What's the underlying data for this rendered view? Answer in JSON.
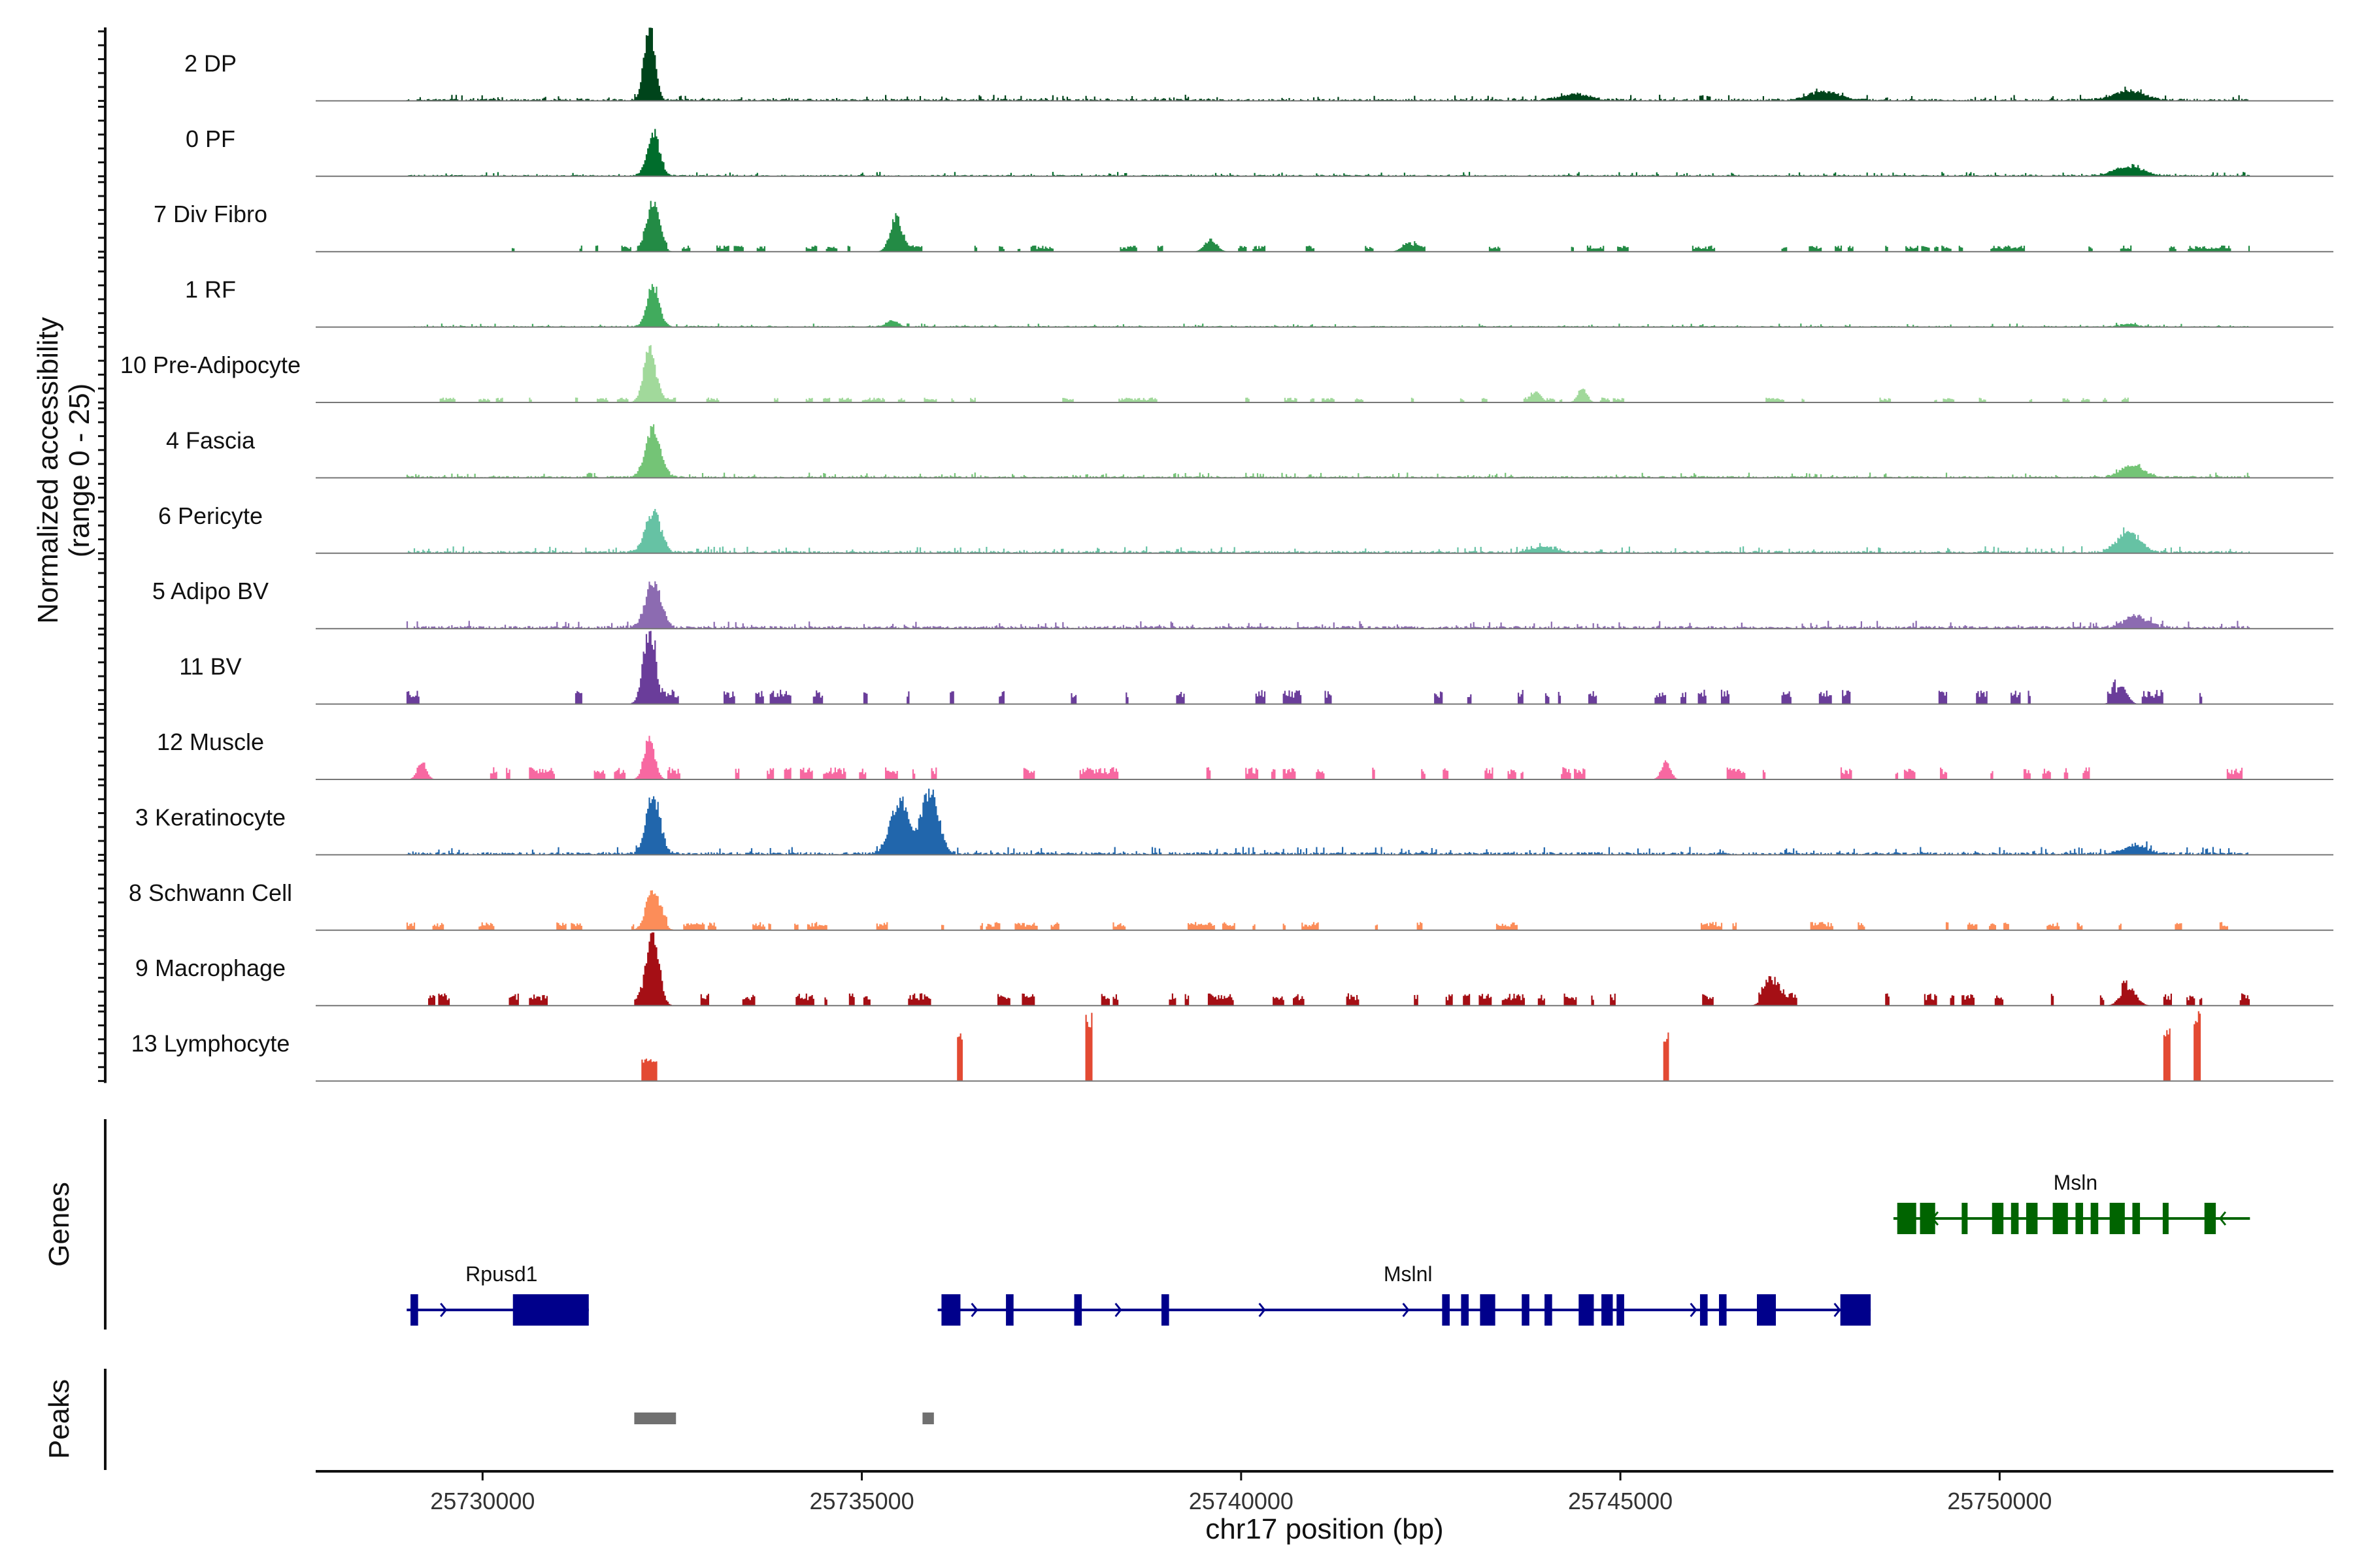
{
  "chart_data": {
    "type": "area",
    "title": "",
    "ylabel_line1": "Normalized accessibility",
    "ylabel_line2": "(range 0 - 25)",
    "xlabel": "chr17 position (bp)",
    "xlim": [
      25727800,
      25754400
    ],
    "ylim": [
      0,
      25
    ],
    "xticks": [
      25730000,
      25735000,
      25740000,
      25745000,
      25750000
    ],
    "xtick_labels": [
      "25730000",
      "25735000",
      "25740000",
      "25745000",
      "25750000"
    ],
    "genes_label": "Genes",
    "peaks_label": "Peaks",
    "tracks": [
      {
        "name": "2 DP",
        "color": "#00441b",
        "style": "continuous",
        "noise": 0.7,
        "peaks": [
          [
            25732200,
            25,
            70
          ],
          [
            25747700,
            3,
            200
          ],
          [
            25751700,
            3,
            200
          ],
          [
            25744400,
            2,
            200
          ]
        ]
      },
      {
        "name": "0 PF",
        "color": "#006d2c",
        "style": "continuous",
        "noise": 0.5,
        "peaks": [
          [
            25732250,
            15,
            80
          ],
          [
            25751700,
            3,
            200
          ]
        ]
      },
      {
        "name": "7 Div Fibro",
        "color": "#238b45",
        "style": "patchy",
        "noise": 1.5,
        "peaks": [
          [
            25732250,
            16,
            80
          ],
          [
            25735450,
            10,
            80
          ],
          [
            25739600,
            4,
            80
          ],
          [
            25742200,
            3,
            80
          ]
        ]
      },
      {
        "name": "1 RF",
        "color": "#41ab5d",
        "style": "continuous",
        "noise": 0.4,
        "peaks": [
          [
            25732250,
            14,
            80
          ],
          [
            25735400,
            2,
            80
          ],
          [
            25751700,
            1,
            100
          ]
        ]
      },
      {
        "name": "10 Pre-Adipocyte",
        "color": "#a1d99b",
        "style": "patchy",
        "noise": 1.2,
        "peaks": [
          [
            25732200,
            17,
            80
          ],
          [
            25743900,
            4,
            60
          ],
          [
            25744500,
            5,
            60
          ]
        ]
      },
      {
        "name": "4 Fascia",
        "color": "#74c476",
        "style": "continuous",
        "noise": 0.6,
        "peaks": [
          [
            25732250,
            16,
            100
          ],
          [
            25751750,
            4,
            150
          ]
        ]
      },
      {
        "name": "6 Pericyte",
        "color": "#66c2a4",
        "style": "continuous",
        "noise": 0.8,
        "peaks": [
          [
            25732250,
            14,
            100
          ],
          [
            25751700,
            7,
            150
          ],
          [
            25744000,
            2,
            150
          ]
        ]
      },
      {
        "name": "5 Adipo BV",
        "color": "#8c6bb1",
        "style": "continuous",
        "noise": 0.9,
        "peaks": [
          [
            25732250,
            16,
            100
          ],
          [
            25751800,
            4,
            150
          ]
        ]
      },
      {
        "name": "11 BV",
        "color": "#6a3d9a",
        "style": "patchy",
        "noise": 3.5,
        "peaks": [
          [
            25732200,
            25,
            80
          ],
          [
            25751600,
            6,
            80
          ]
        ]
      },
      {
        "name": "12 Muscle",
        "color": "#f768a1",
        "style": "patchy",
        "noise": 3.0,
        "peaks": [
          [
            25732200,
            14,
            70
          ],
          [
            25729200,
            6,
            60
          ],
          [
            25745600,
            6,
            60
          ]
        ]
      },
      {
        "name": "3 Keratinocyte",
        "color": "#2166ac",
        "style": "continuous",
        "noise": 0.9,
        "peaks": [
          [
            25732250,
            20,
            90
          ],
          [
            25735500,
            18,
            120
          ],
          [
            25735900,
            22,
            110
          ],
          [
            25751800,
            3,
            150
          ]
        ]
      },
      {
        "name": "8 Schwann Cell",
        "color": "#fc8d59",
        "style": "patchy",
        "noise": 2.0,
        "peaks": [
          [
            25732250,
            14,
            90
          ]
        ]
      },
      {
        "name": "9 Macrophage",
        "color": "#a50f15",
        "style": "patchy",
        "noise": 3.0,
        "peaks": [
          [
            25732250,
            24,
            80
          ],
          [
            25751700,
            6,
            100
          ],
          [
            25747000,
            6,
            100
          ]
        ]
      },
      {
        "name": "13 Lymphocyte",
        "color": "#e34a33",
        "style": "sparse",
        "noise": 0,
        "peaks": [
          [
            25738000,
            24,
            50
          ],
          [
            25752600,
            24,
            50
          ],
          [
            25752200,
            18,
            50
          ],
          [
            25736300,
            18,
            40
          ],
          [
            25745600,
            17,
            40
          ],
          [
            25732200,
            8,
            100
          ]
        ]
      }
    ],
    "genes": [
      {
        "name": "Rpusd1",
        "strand": "+",
        "color": "#00008b",
        "start": 25729000,
        "end": 25731400,
        "exons": [
          [
            25729050,
            25729150
          ],
          [
            25730400,
            25731400
          ]
        ]
      },
      {
        "name": "Mslnl",
        "strand": "+",
        "color": "#00008b",
        "start": 25736000,
        "end": 25748300,
        "exons": [
          [
            25736050,
            25736300
          ],
          [
            25736900,
            25737000
          ],
          [
            25737800,
            25737900
          ],
          [
            25738950,
            25739050
          ],
          [
            25742650,
            25742750
          ],
          [
            25742900,
            25743000
          ],
          [
            25743150,
            25743350
          ],
          [
            25743700,
            25743800
          ],
          [
            25744000,
            25744100
          ],
          [
            25744450,
            25744650
          ],
          [
            25744750,
            25744900
          ],
          [
            25744950,
            25745050
          ],
          [
            25746050,
            25746150
          ],
          [
            25746300,
            25746400
          ],
          [
            25746800,
            25747050
          ],
          [
            25747900,
            25748300
          ]
        ]
      },
      {
        "name": "Msln",
        "strand": "-",
        "color": "#006400",
        "start": 25748600,
        "end": 25753300,
        "exons": [
          [
            25748650,
            25748900
          ],
          [
            25748950,
            25749150
          ],
          [
            25749500,
            25749550
          ],
          [
            25749900,
            25750050
          ],
          [
            25750150,
            25750250
          ],
          [
            25750350,
            25750500
          ],
          [
            25750700,
            25750900
          ],
          [
            25751000,
            25751100
          ],
          [
            25751200,
            25751300
          ],
          [
            25751450,
            25751650
          ],
          [
            25751750,
            25751850
          ],
          [
            25752150,
            25752200
          ],
          [
            25752700,
            25752850
          ]
        ]
      }
    ],
    "peaks": [
      [
        25732000,
        25732550
      ],
      [
        25735800,
        25735950
      ]
    ]
  }
}
